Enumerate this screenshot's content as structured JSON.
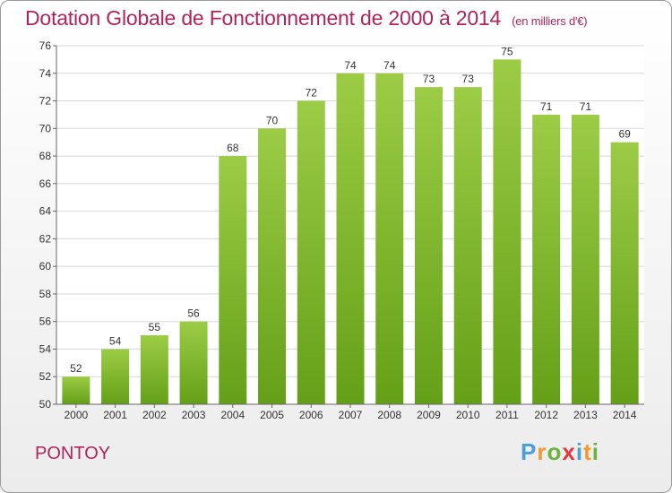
{
  "title": "Dotation Globale de Fonctionnement de 2000 à 2014",
  "subtitle": "(en milliers d'€)",
  "commune": "PONTOY",
  "logo": {
    "letters": [
      "P",
      "r",
      "o",
      "x",
      "i",
      "t",
      "i"
    ],
    "colors": [
      "#4a9fd8",
      "#f29a2e",
      "#6cb33f",
      "#e23a3a",
      "#4a9fd8",
      "#f29a2e",
      "#6cb33f"
    ]
  },
  "chart_data": {
    "type": "bar",
    "title": "Dotation Globale de Fonctionnement de 2000 à 2014",
    "categories": [
      "2000",
      "2001",
      "2002",
      "2003",
      "2004",
      "2005",
      "2006",
      "2007",
      "2008",
      "2009",
      "2010",
      "2011",
      "2012",
      "2013",
      "2014"
    ],
    "values": [
      52,
      54,
      55,
      56,
      68,
      70,
      72,
      74,
      74,
      73,
      73,
      75,
      71,
      71,
      69
    ],
    "ylim": [
      50,
      76
    ],
    "yticks": [
      50,
      52,
      54,
      56,
      58,
      60,
      62,
      64,
      66,
      68,
      70,
      72,
      74,
      76
    ],
    "grid": true,
    "colors": {
      "bar_light": "#9ccc46",
      "bar_dark": "#64a017",
      "title": "#b0245c"
    }
  }
}
